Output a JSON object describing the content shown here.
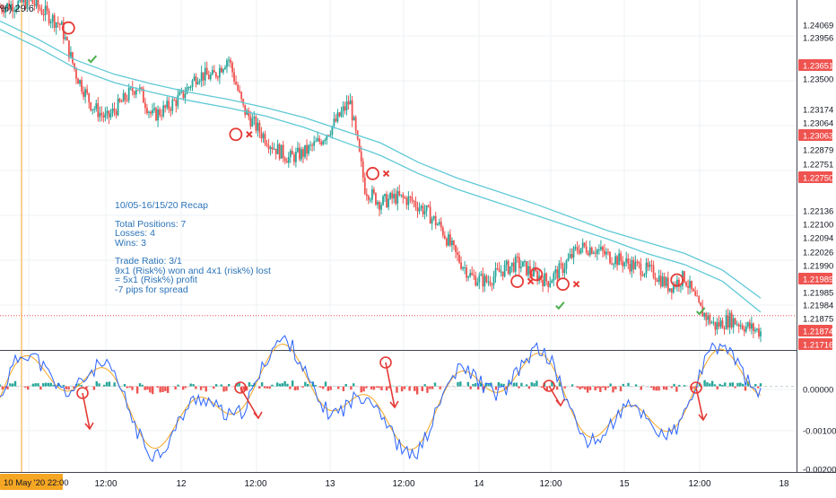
{
  "legend": {
    "text": "%) 29.6"
  },
  "price_axis": {
    "ticks": [
      "1.24069",
      "1.23956",
      "1.23651",
      "1.23500",
      "1.23174",
      "1.23064",
      "1.23063",
      "1.22879",
      "1.22751",
      "1.22750",
      "1.22136",
      "1.22100",
      "1.22094",
      "1.22026",
      "1.21990",
      "1.21989",
      "1.21985",
      "1.21984",
      "1.21875",
      "1.21874",
      "1.21716"
    ],
    "tick_kinds": [
      "box",
      "box",
      "red",
      "plain",
      "box",
      "box",
      "red",
      "box",
      "box",
      "red",
      "box",
      "box",
      "box",
      "box",
      "box",
      "red",
      "plain",
      "box",
      "box",
      "red",
      "red"
    ]
  },
  "osc_axis": {
    "ticks": [
      "0.00000",
      "-0.00100",
      "-0.00200"
    ]
  },
  "time_axis": {
    "cursor_label": "10 May '20  22:00",
    "ticks": [
      "12:00",
      "12",
      "12:00",
      "13",
      "12:00",
      "14",
      "12:00",
      "15",
      "12:00",
      "18"
    ]
  },
  "recap": {
    "lines": [
      "10/05-16/15/20 Recap",
      "",
      "Total Positions: 7",
      "Losses: 4",
      "Wins: 3",
      "",
      "Trade Ratio: 3/1",
      "9x1 (Risk%) won and 4x1 (risk%) lost",
      "= 5x1 (Risk%) profit",
      "-7 pips for spread"
    ]
  },
  "chart_data": {
    "type": "candlestick",
    "symbol_pair_axis": "price",
    "price_range": [
      1.2163,
      1.2413
    ],
    "current_price": 1.21875,
    "series": [
      {
        "name": "",
        "kind": "moving-average",
        "color": "#5fc9d6",
        "x": [
          0,
          5,
          10,
          15,
          20,
          25,
          30,
          35,
          40,
          45,
          50,
          55,
          60,
          65,
          70,
          75,
          80,
          85,
          90,
          95,
          100
        ],
        "y": [
          1.2398,
          1.2385,
          1.237,
          1.236,
          1.2353,
          1.2347,
          1.2342,
          1.2336,
          1.2329,
          1.232,
          1.2311,
          1.2297,
          1.2286,
          1.2277,
          1.2268,
          1.2258,
          1.2248,
          1.224,
          1.2232,
          1.222,
          1.22
        ]
      },
      {
        "name": "",
        "kind": "moving-average",
        "color": "#5fc9d6",
        "x": [
          0,
          5,
          10,
          15,
          20,
          25,
          30,
          35,
          40,
          45,
          50,
          55,
          60,
          65,
          70,
          75,
          80,
          85,
          90,
          95,
          100
        ],
        "y": [
          1.2392,
          1.2379,
          1.2364,
          1.2354,
          1.2347,
          1.2341,
          1.2336,
          1.233,
          1.2322,
          1.2312,
          1.2302,
          1.2289,
          1.2278,
          1.2269,
          1.226,
          1.2251,
          1.2242,
          1.2232,
          1.2224,
          1.2212,
          1.219
        ]
      },
      {
        "name": "",
        "kind": "price-path",
        "color": "#26a69a",
        "x": [
          0,
          4,
          8,
          10,
          12,
          14,
          16,
          18,
          20,
          22,
          24,
          26,
          28,
          30,
          32,
          34,
          36,
          38,
          40,
          42,
          44,
          46,
          48,
          50,
          52,
          54,
          56,
          58,
          60,
          62,
          64,
          66,
          68,
          70,
          72,
          74,
          76,
          78,
          80,
          82,
          84,
          86,
          88,
          90,
          92,
          94,
          96,
          98,
          100
        ],
        "y": [
          1.2408,
          1.2412,
          1.2395,
          1.236,
          1.2338,
          1.2328,
          1.234,
          1.2352,
          1.233,
          1.2336,
          1.2345,
          1.236,
          1.2358,
          1.2372,
          1.2335,
          1.232,
          1.2308,
          1.23,
          1.2304,
          1.2312,
          1.2325,
          1.2341,
          1.2278,
          1.2268,
          1.2272,
          1.227,
          1.2262,
          1.225,
          1.223,
          1.2215,
          1.2212,
          1.222,
          1.2225,
          1.2218,
          1.2212,
          1.2222,
          1.2236,
          1.2236,
          1.223,
          1.2226,
          1.2222,
          1.2218,
          1.2208,
          1.2215,
          1.2192,
          1.218,
          1.2185,
          1.218,
          1.2176
        ]
      }
    ],
    "trades": [
      {
        "x": 9.0,
        "y": 1.2393,
        "result": "win"
      },
      {
        "x": 31.0,
        "y": 1.2317,
        "result": "loss"
      },
      {
        "x": 49.0,
        "y": 1.2289,
        "result": "loss"
      },
      {
        "x": 70.5,
        "y": 1.2217,
        "result": "win"
      },
      {
        "x": 74.0,
        "y": 1.221,
        "result": "loss"
      },
      {
        "x": 68.0,
        "y": 1.2212,
        "result": "loss"
      },
      {
        "x": 89.0,
        "y": 1.2213,
        "result": "win"
      }
    ],
    "oscillator": {
      "range": [
        -0.00205,
        0.00085
      ],
      "zero_line": 0
    }
  },
  "colors": {
    "up": "#26a69a",
    "down": "#ef5350",
    "ma": "#5fc9d6",
    "annot": "#e53935",
    "win": "#4caf50",
    "cursor": "#f5a623",
    "osc_fast": "#2962ff",
    "osc_slow": "#f5a623"
  }
}
